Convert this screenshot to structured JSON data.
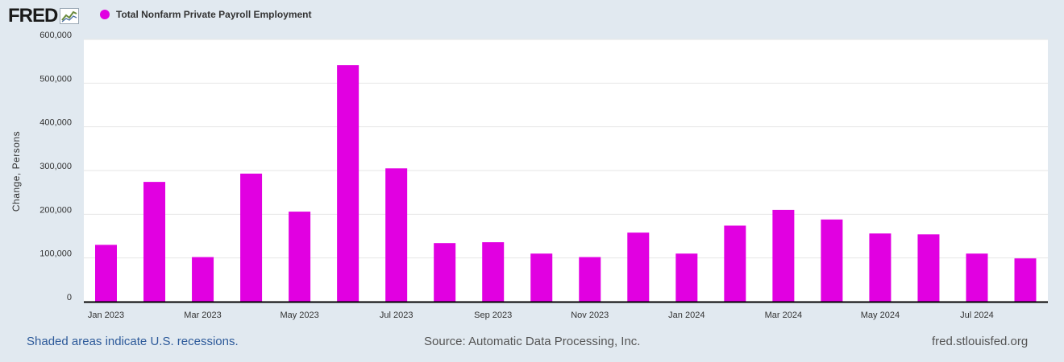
{
  "header": {
    "logo": "FRED",
    "legend_label": "Total Nonfarm Private Payroll Employment"
  },
  "colors": {
    "series": "#e100e1",
    "background": "#e1e9f0",
    "plot_background": "#ffffff",
    "grid": "#e6e6e6",
    "axis": "#000000",
    "link": "#2d5a9a"
  },
  "footer": {
    "recession_note": "Shaded areas indicate U.S. recessions.",
    "source": "Source: Automatic Data Processing, Inc.",
    "site": "fred.stlouisfed.org"
  },
  "chart_data": {
    "type": "bar",
    "title": "",
    "xlabel": "",
    "ylabel": "Change, Persons",
    "ylim": [
      0,
      600000
    ],
    "yticks": [
      0,
      100000,
      200000,
      300000,
      400000,
      500000,
      600000
    ],
    "ytick_labels": [
      "0",
      "100,000",
      "200,000",
      "300,000",
      "400,000",
      "500,000",
      "600,000"
    ],
    "xtick_labels": [
      "Jan 2023",
      "Mar 2023",
      "May 2023",
      "Jul 2023",
      "Sep 2023",
      "Nov 2023",
      "Jan 2024",
      "Mar 2024",
      "May 2024",
      "Jul 2024"
    ],
    "grid": true,
    "legend_position": "top-left",
    "categories": [
      "2023-01",
      "2023-02",
      "2023-03",
      "2023-04",
      "2023-05",
      "2023-06",
      "2023-07",
      "2023-08",
      "2023-09",
      "2023-10",
      "2023-11",
      "2023-12",
      "2024-01",
      "2024-02",
      "2024-03",
      "2024-04",
      "2024-05",
      "2024-06",
      "2024-07",
      "2024-08"
    ],
    "series": [
      {
        "name": "Total Nonfarm Private Payroll Employment",
        "values": [
          130000,
          274000,
          102000,
          293000,
          206000,
          541000,
          305000,
          134000,
          136000,
          110000,
          102000,
          158000,
          110000,
          174000,
          210000,
          188000,
          156000,
          154000,
          110000,
          99000
        ]
      }
    ]
  }
}
